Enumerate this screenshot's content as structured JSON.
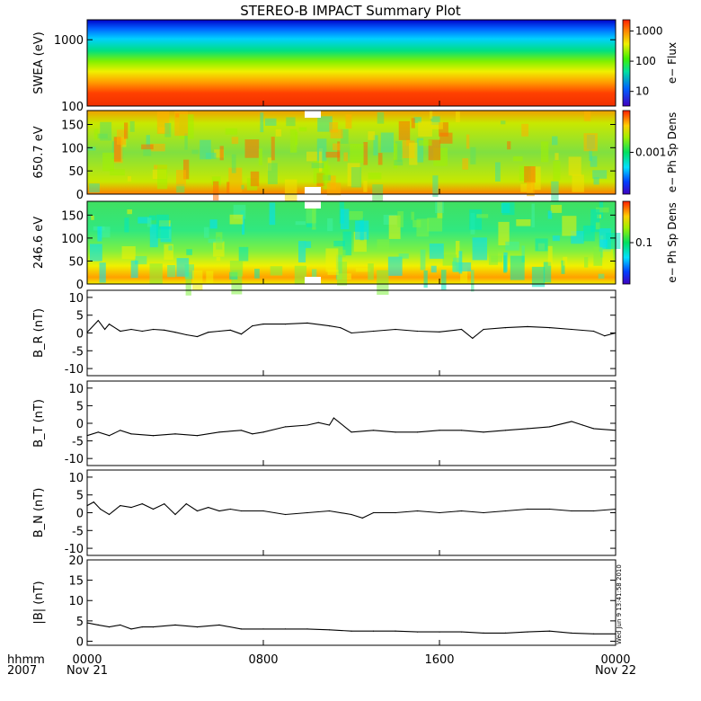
{
  "title": "STEREO-B IMPACT Summary Plot",
  "time_axis": {
    "row_labels": [
      "hhmm",
      "2007"
    ],
    "ticks": [
      {
        "hour": 0,
        "label": "0000",
        "sub": "Nov 21"
      },
      {
        "hour": 8,
        "label": "0800",
        "sub": ""
      },
      {
        "hour": 16,
        "label": "1600",
        "sub": ""
      },
      {
        "hour": 24,
        "label": "0000",
        "sub": "Nov 22"
      }
    ],
    "range_hours": [
      0,
      24
    ]
  },
  "timestamp": "Wed Jun  9 13:41:58 2010",
  "colorbars": [
    {
      "label": "e− Flux",
      "scale": "log",
      "ticks": [
        "1000",
        "100",
        "10"
      ]
    },
    {
      "label": "e− Ph Sp Dens",
      "scale": "log",
      "ticks": [
        "0.001"
      ]
    },
    {
      "label": "e− Ph Sp Dens",
      "scale": "log",
      "ticks": [
        "0.1"
      ]
    }
  ],
  "chart_data": [
    {
      "type": "heatmap",
      "ylabel": "SWEA (eV)",
      "yscale": "log",
      "ylim": [
        100,
        2000
      ],
      "yticks": [
        "1000",
        "100"
      ],
      "description_levels": "highest flux (red) at ~100-200 eV, decreasing to low flux (blue) above ~1500 eV",
      "bands": [
        {
          "energy_eV": 100,
          "level": "high"
        },
        {
          "energy_eV": 300,
          "level": "medium-high"
        },
        {
          "energy_eV": 600,
          "level": "medium"
        },
        {
          "energy_eV": 1000,
          "level": "low-medium"
        },
        {
          "energy_eV": 1800,
          "level": "low"
        }
      ]
    },
    {
      "type": "heatmap",
      "ylabel": "650.7 eV",
      "ylim": [
        0,
        180
      ],
      "yticks": [
        "150",
        "100",
        "50",
        "0"
      ]
    },
    {
      "type": "heatmap",
      "ylabel": "246.6 eV",
      "ylim": [
        0,
        180
      ],
      "yticks": [
        "150",
        "100",
        "50",
        "0"
      ]
    },
    {
      "type": "line",
      "ylabel": "B_R (nT)",
      "ylim": [
        -12,
        12
      ],
      "yticks": [
        "10",
        "5",
        "0",
        "-5",
        "-10"
      ],
      "x": [
        0,
        0.5,
        0.8,
        1.0,
        1.5,
        2,
        2.5,
        3,
        3.5,
        4,
        4.5,
        5,
        5.5,
        6,
        6.5,
        7,
        7.5,
        8,
        9,
        10,
        11,
        11.5,
        12,
        13,
        14,
        15,
        16,
        17,
        17.5,
        18,
        19,
        20,
        21,
        22,
        23,
        23.5,
        24
      ],
      "y": [
        0.2,
        3.5,
        1.0,
        2.5,
        0.5,
        1.0,
        0.5,
        1.0,
        0.8,
        0.2,
        -0.5,
        -1.0,
        0.2,
        0.5,
        0.8,
        -0.3,
        2.0,
        2.5,
        2.5,
        2.8,
        2.0,
        1.5,
        0.0,
        0.5,
        1.0,
        0.5,
        0.3,
        1.0,
        -1.5,
        1.0,
        1.5,
        1.8,
        1.5,
        1.0,
        0.5,
        -0.8,
        0.0
      ]
    },
    {
      "type": "line",
      "ylabel": "B_T (nT)",
      "ylim": [
        -12,
        12
      ],
      "yticks": [
        "10",
        "5",
        "0",
        "-5",
        "-10"
      ],
      "x": [
        0,
        0.5,
        1,
        1.5,
        2,
        3,
        4,
        5,
        6,
        7,
        7.5,
        8,
        9,
        10,
        10.5,
        11,
        11.2,
        12,
        13,
        14,
        15,
        16,
        17,
        18,
        19,
        20,
        21,
        22,
        22.5,
        23,
        24
      ],
      "y": [
        -3.5,
        -2.5,
        -3.5,
        -2.0,
        -3.0,
        -3.5,
        -3.0,
        -3.5,
        -2.5,
        -2.0,
        -3.0,
        -2.5,
        -1.0,
        -0.5,
        0.2,
        -0.5,
        1.5,
        -2.5,
        -2.0,
        -2.5,
        -2.5,
        -2.0,
        -2.0,
        -2.5,
        -2.0,
        -1.5,
        -1.0,
        0.5,
        -0.5,
        -1.5,
        -2.0
      ]
    },
    {
      "type": "line",
      "ylabel": "B_N (nT)",
      "ylim": [
        -12,
        12
      ],
      "yticks": [
        "10",
        "5",
        "0",
        "-5",
        "-10"
      ],
      "x": [
        0,
        0.3,
        0.6,
        1,
        1.5,
        2,
        2.5,
        3,
        3.5,
        4,
        4.5,
        5,
        5.5,
        6,
        6.5,
        7,
        8,
        9,
        10,
        11,
        12,
        12.5,
        13,
        14,
        15,
        16,
        17,
        18,
        19,
        20,
        21,
        22,
        23,
        24
      ],
      "y": [
        2.0,
        3.0,
        1.0,
        -0.5,
        2.0,
        1.5,
        2.5,
        1.0,
        2.5,
        -0.5,
        2.5,
        0.5,
        1.5,
        0.5,
        1.0,
        0.5,
        0.5,
        -0.5,
        0.0,
        0.5,
        -0.5,
        -1.5,
        0.0,
        0.0,
        0.5,
        0.0,
        0.5,
        0.0,
        0.5,
        1.0,
        1.0,
        0.5,
        0.5,
        1.0
      ]
    },
    {
      "type": "line",
      "ylabel": "|B| (nT)",
      "ylim": [
        -1,
        20
      ],
      "yticks": [
        "20",
        "15",
        "10",
        "5",
        "0"
      ],
      "x": [
        0,
        0.5,
        1,
        1.5,
        2,
        2.5,
        3,
        4,
        5,
        6,
        7,
        8,
        9,
        10,
        11,
        12,
        13,
        14,
        15,
        16,
        17,
        18,
        19,
        20,
        21,
        22,
        23,
        24
      ],
      "y": [
        4.5,
        4.0,
        3.5,
        4.0,
        3.0,
        3.5,
        3.5,
        4.0,
        3.5,
        4.0,
        3.0,
        3.0,
        3.0,
        3.0,
        2.8,
        2.5,
        2.5,
        2.5,
        2.3,
        2.3,
        2.3,
        2.0,
        2.0,
        2.3,
        2.5,
        2.0,
        1.8,
        1.8
      ]
    }
  ]
}
